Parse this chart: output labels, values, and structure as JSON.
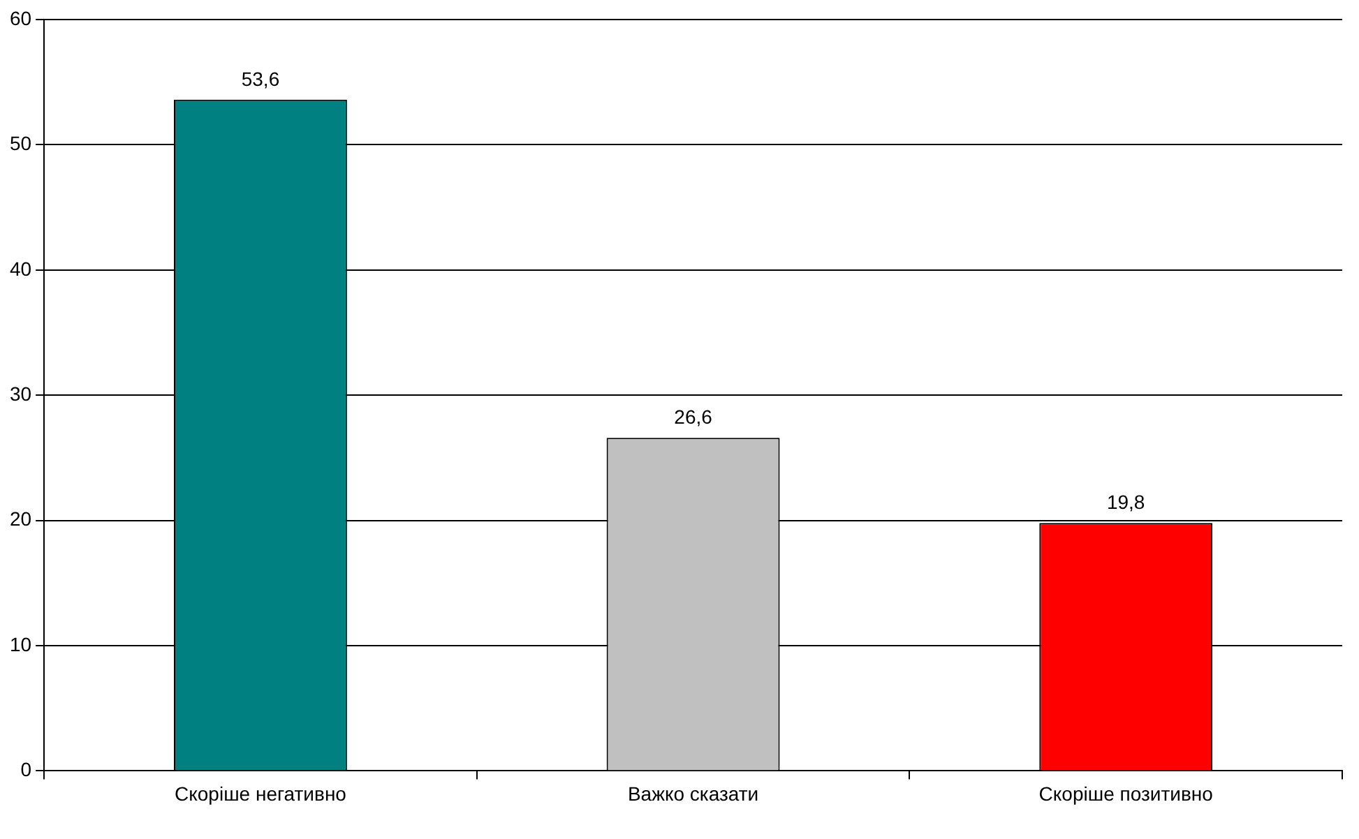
{
  "chart_data": {
    "type": "bar",
    "categories": [
      "Скоріше негативно",
      "Важко сказати",
      "Скоріше позитивно"
    ],
    "values": [
      53.6,
      26.6,
      19.8
    ],
    "colors": [
      "#008080",
      "#c0c0c0",
      "#ff0000"
    ],
    "value_labels": [
      "53,6",
      "26,6",
      "19,8"
    ],
    "ylim": [
      0,
      60
    ],
    "yticks": [
      0,
      10,
      20,
      30,
      40,
      50,
      60
    ],
    "grid": "y"
  }
}
